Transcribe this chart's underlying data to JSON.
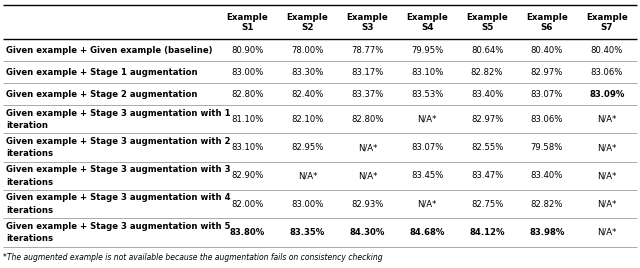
{
  "col_headers": [
    "",
    "Example\nS1",
    "Example\nS2",
    "Example\nS3",
    "Example\nS4",
    "Example\nS5",
    "Example\nS6",
    "Example\nS7"
  ],
  "rows": [
    {
      "label": "Given example + Given example (baseline)",
      "label2": null,
      "values": [
        "80.90%",
        "78.00%",
        "78.77%",
        "79.95%",
        "80.64%",
        "80.40%",
        "80.40%"
      ],
      "bold_indices": [],
      "label_bold": true
    },
    {
      "label": "Given example + Stage 1 augmentation",
      "label2": null,
      "values": [
        "83.00%",
        "83.30%",
        "83.17%",
        "83.10%",
        "82.82%",
        "82.97%",
        "83.06%"
      ],
      "bold_indices": [],
      "label_bold": true
    },
    {
      "label": "Given example + Stage 2 augmentation",
      "label2": null,
      "values": [
        "82.80%",
        "82.40%",
        "83.37%",
        "83.53%",
        "83.40%",
        "83.07%",
        "83.09%"
      ],
      "bold_indices": [
        6
      ],
      "label_bold": true
    },
    {
      "label": "Given example + Stage 3 augmentation with 1",
      "label2": "iteration",
      "values": [
        "81.10%",
        "82.10%",
        "82.80%",
        "N/A*",
        "82.97%",
        "83.06%",
        "N/A*"
      ],
      "bold_indices": [],
      "label_bold": true
    },
    {
      "label": "Given example + Stage 3 augmentation with 2",
      "label2": "iterations",
      "values": [
        "83.10%",
        "82.95%",
        "N/A*",
        "83.07%",
        "82.55%",
        "79.58%",
        "N/A*"
      ],
      "bold_indices": [],
      "label_bold": true
    },
    {
      "label": "Given example + Stage 3 augmentation with 3",
      "label2": "iterations",
      "values": [
        "82.90%",
        "N/A*",
        "N/A*",
        "83.45%",
        "83.47%",
        "83.40%",
        "N/A*"
      ],
      "bold_indices": [],
      "label_bold": true
    },
    {
      "label": "Given example + Stage 3 augmentation with 4",
      "label2": "iterations",
      "values": [
        "82.00%",
        "83.00%",
        "82.93%",
        "N/A*",
        "82.75%",
        "82.82%",
        "N/A*"
      ],
      "bold_indices": [],
      "label_bold": true
    },
    {
      "label": "Given example + Stage 3 augmentation with 5",
      "label2": "iterations",
      "values": [
        "83.80%",
        "83.35%",
        "84.30%",
        "84.68%",
        "84.12%",
        "83.98%",
        "N/A*"
      ],
      "bold_indices": [
        0,
        1,
        2,
        3,
        4,
        5
      ],
      "label_bold": true
    }
  ],
  "footnote": "*The augmented example is not available because the augmentation fails on consistency checking",
  "bg_color": "#ffffff",
  "text_color": "#000000"
}
